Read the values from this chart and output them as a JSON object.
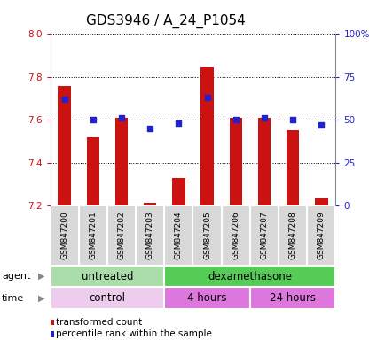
{
  "title": "GDS3946 / A_24_P1054",
  "samples": [
    "GSM847200",
    "GSM847201",
    "GSM847202",
    "GSM847203",
    "GSM847204",
    "GSM847205",
    "GSM847206",
    "GSM847207",
    "GSM847208",
    "GSM847209"
  ],
  "transformed_counts": [
    7.76,
    7.52,
    7.61,
    7.215,
    7.33,
    7.845,
    7.61,
    7.61,
    7.55,
    7.235
  ],
  "percentile_ranks": [
    62,
    50,
    51,
    45,
    48,
    63,
    50,
    51,
    50,
    47
  ],
  "ylim": [
    7.2,
    8.0
  ],
  "yticks": [
    7.2,
    7.4,
    7.6,
    7.8,
    8.0
  ],
  "right_yticks": [
    0,
    25,
    50,
    75,
    100
  ],
  "right_ytick_labels": [
    "0",
    "25",
    "50",
    "75",
    "100%"
  ],
  "bar_color": "#cc1111",
  "dot_color": "#2222cc",
  "agent_groups": [
    {
      "label": "untreated",
      "start": 0,
      "end": 4,
      "color": "#aaddaa"
    },
    {
      "label": "dexamethasone",
      "start": 4,
      "end": 10,
      "color": "#55cc55"
    }
  ],
  "time_groups": [
    {
      "label": "control",
      "start": 0,
      "end": 4,
      "color": "#eeccee"
    },
    {
      "label": "4 hours",
      "start": 4,
      "end": 7,
      "color": "#dd77dd"
    },
    {
      "label": "24 hours",
      "start": 7,
      "end": 10,
      "color": "#dd77dd"
    }
  ],
  "legend_items": [
    {
      "label": "transformed count",
      "color": "#cc1111"
    },
    {
      "label": "percentile rank within the sample",
      "color": "#2222cc"
    }
  ],
  "bar_width": 0.45,
  "plot_bg_color": "#ffffff",
  "title_fontsize": 11,
  "axis_tick_fontsize": 7.5,
  "sample_label_fontsize": 6.5,
  "group_label_fontsize": 8.5,
  "legend_fontsize": 7.5
}
